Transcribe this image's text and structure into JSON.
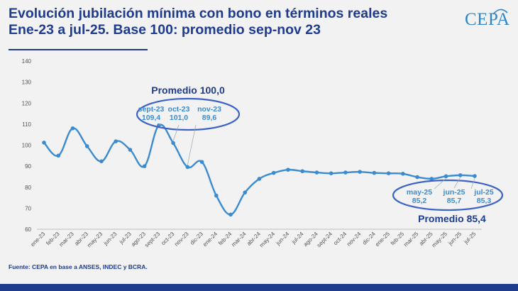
{
  "header": {
    "title_line1": "Evolución jubilación mínima con bono en términos reales",
    "title_line2": "Ene-23 a jul-25. Base 100: promedio sep-nov 23",
    "logo": "CEPA"
  },
  "footer": {
    "source": "Fuente: CEPA en base a ANSES, INDEC y BCRA."
  },
  "colors": {
    "line": "#3a8bd0",
    "ellipse": "#3b62c4",
    "title": "#1f3b8c"
  },
  "chart_data": {
    "type": "line",
    "categories": [
      "ene-23",
      "feb-23",
      "mar-23",
      "abr-23",
      "may-23",
      "jun-23",
      "jul-23",
      "ago-23",
      "sept-23",
      "oct-23",
      "nov-23",
      "dic-23",
      "ene-24",
      "feb-24",
      "mar-24",
      "abr-24",
      "may-24",
      "jun-24",
      "jul-24",
      "ago-24",
      "sept-24",
      "oct-24",
      "nov-24",
      "dic-24",
      "ene-25",
      "feb-25",
      "mar-25",
      "abr-25",
      "may-25",
      "jun-25",
      "jul-25"
    ],
    "series": [
      {
        "values": [
          101.2,
          95.0,
          108.0,
          99.5,
          92.3,
          101.8,
          97.8,
          90.0,
          109.4,
          101.0,
          89.6,
          92.0,
          76.0,
          67.0,
          77.5,
          84.0,
          86.8,
          88.3,
          87.6,
          87.0,
          86.6,
          87.0,
          87.3,
          86.8,
          86.6,
          86.4,
          84.8,
          84.0,
          85.2,
          85.7,
          85.3
        ]
      }
    ],
    "ylim": [
      60,
      140
    ],
    "yticks": [
      "60",
      "70",
      "80",
      "90",
      "100",
      "110",
      "120",
      "130",
      "140"
    ],
    "annotations": {
      "group1": {
        "label": "Promedio 100,0",
        "items": [
          {
            "month": "sept-23",
            "value": "109,4"
          },
          {
            "month": "oct-23",
            "value": "101,0"
          },
          {
            "month": "nov-23",
            "value": "89,6"
          }
        ]
      },
      "group2": {
        "label": "Promedio 85,4",
        "items": [
          {
            "month": "may-25",
            "value": "85,2"
          },
          {
            "month": "jun-25",
            "value": "85,7"
          },
          {
            "month": "jul-25",
            "value": "85,3"
          }
        ]
      }
    }
  }
}
